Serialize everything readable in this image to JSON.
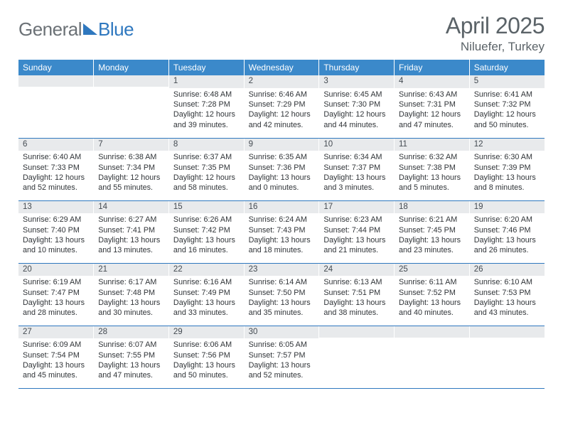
{
  "logo": {
    "part1": "General",
    "part2": "Blue"
  },
  "title": {
    "month": "April 2025",
    "location": "Niluefer, Turkey"
  },
  "colors": {
    "header_bg": "#3b89ca",
    "border": "#2f78bf",
    "daynum_bg": "#e8eaec",
    "text": "#303438",
    "muted": "#5b6368"
  },
  "days": [
    "Sunday",
    "Monday",
    "Tuesday",
    "Wednesday",
    "Thursday",
    "Friday",
    "Saturday"
  ],
  "grid": [
    [
      {
        "n": "",
        "sr": "",
        "ss": "",
        "dl": ""
      },
      {
        "n": "",
        "sr": "",
        "ss": "",
        "dl": ""
      },
      {
        "n": "1",
        "sr": "6:48 AM",
        "ss": "7:28 PM",
        "dl": "12 hours and 39 minutes."
      },
      {
        "n": "2",
        "sr": "6:46 AM",
        "ss": "7:29 PM",
        "dl": "12 hours and 42 minutes."
      },
      {
        "n": "3",
        "sr": "6:45 AM",
        "ss": "7:30 PM",
        "dl": "12 hours and 44 minutes."
      },
      {
        "n": "4",
        "sr": "6:43 AM",
        "ss": "7:31 PM",
        "dl": "12 hours and 47 minutes."
      },
      {
        "n": "5",
        "sr": "6:41 AM",
        "ss": "7:32 PM",
        "dl": "12 hours and 50 minutes."
      }
    ],
    [
      {
        "n": "6",
        "sr": "6:40 AM",
        "ss": "7:33 PM",
        "dl": "12 hours and 52 minutes."
      },
      {
        "n": "7",
        "sr": "6:38 AM",
        "ss": "7:34 PM",
        "dl": "12 hours and 55 minutes."
      },
      {
        "n": "8",
        "sr": "6:37 AM",
        "ss": "7:35 PM",
        "dl": "12 hours and 58 minutes."
      },
      {
        "n": "9",
        "sr": "6:35 AM",
        "ss": "7:36 PM",
        "dl": "13 hours and 0 minutes."
      },
      {
        "n": "10",
        "sr": "6:34 AM",
        "ss": "7:37 PM",
        "dl": "13 hours and 3 minutes."
      },
      {
        "n": "11",
        "sr": "6:32 AM",
        "ss": "7:38 PM",
        "dl": "13 hours and 5 minutes."
      },
      {
        "n": "12",
        "sr": "6:30 AM",
        "ss": "7:39 PM",
        "dl": "13 hours and 8 minutes."
      }
    ],
    [
      {
        "n": "13",
        "sr": "6:29 AM",
        "ss": "7:40 PM",
        "dl": "13 hours and 10 minutes."
      },
      {
        "n": "14",
        "sr": "6:27 AM",
        "ss": "7:41 PM",
        "dl": "13 hours and 13 minutes."
      },
      {
        "n": "15",
        "sr": "6:26 AM",
        "ss": "7:42 PM",
        "dl": "13 hours and 16 minutes."
      },
      {
        "n": "16",
        "sr": "6:24 AM",
        "ss": "7:43 PM",
        "dl": "13 hours and 18 minutes."
      },
      {
        "n": "17",
        "sr": "6:23 AM",
        "ss": "7:44 PM",
        "dl": "13 hours and 21 minutes."
      },
      {
        "n": "18",
        "sr": "6:21 AM",
        "ss": "7:45 PM",
        "dl": "13 hours and 23 minutes."
      },
      {
        "n": "19",
        "sr": "6:20 AM",
        "ss": "7:46 PM",
        "dl": "13 hours and 26 minutes."
      }
    ],
    [
      {
        "n": "20",
        "sr": "6:19 AM",
        "ss": "7:47 PM",
        "dl": "13 hours and 28 minutes."
      },
      {
        "n": "21",
        "sr": "6:17 AM",
        "ss": "7:48 PM",
        "dl": "13 hours and 30 minutes."
      },
      {
        "n": "22",
        "sr": "6:16 AM",
        "ss": "7:49 PM",
        "dl": "13 hours and 33 minutes."
      },
      {
        "n": "23",
        "sr": "6:14 AM",
        "ss": "7:50 PM",
        "dl": "13 hours and 35 minutes."
      },
      {
        "n": "24",
        "sr": "6:13 AM",
        "ss": "7:51 PM",
        "dl": "13 hours and 38 minutes."
      },
      {
        "n": "25",
        "sr": "6:11 AM",
        "ss": "7:52 PM",
        "dl": "13 hours and 40 minutes."
      },
      {
        "n": "26",
        "sr": "6:10 AM",
        "ss": "7:53 PM",
        "dl": "13 hours and 43 minutes."
      }
    ],
    [
      {
        "n": "27",
        "sr": "6:09 AM",
        "ss": "7:54 PM",
        "dl": "13 hours and 45 minutes."
      },
      {
        "n": "28",
        "sr": "6:07 AM",
        "ss": "7:55 PM",
        "dl": "13 hours and 47 minutes."
      },
      {
        "n": "29",
        "sr": "6:06 AM",
        "ss": "7:56 PM",
        "dl": "13 hours and 50 minutes."
      },
      {
        "n": "30",
        "sr": "6:05 AM",
        "ss": "7:57 PM",
        "dl": "13 hours and 52 minutes."
      },
      {
        "n": "",
        "sr": "",
        "ss": "",
        "dl": ""
      },
      {
        "n": "",
        "sr": "",
        "ss": "",
        "dl": ""
      },
      {
        "n": "",
        "sr": "",
        "ss": "",
        "dl": ""
      }
    ]
  ],
  "labels": {
    "sunrise": "Sunrise: ",
    "sunset": "Sunset: ",
    "daylight": "Daylight: "
  }
}
